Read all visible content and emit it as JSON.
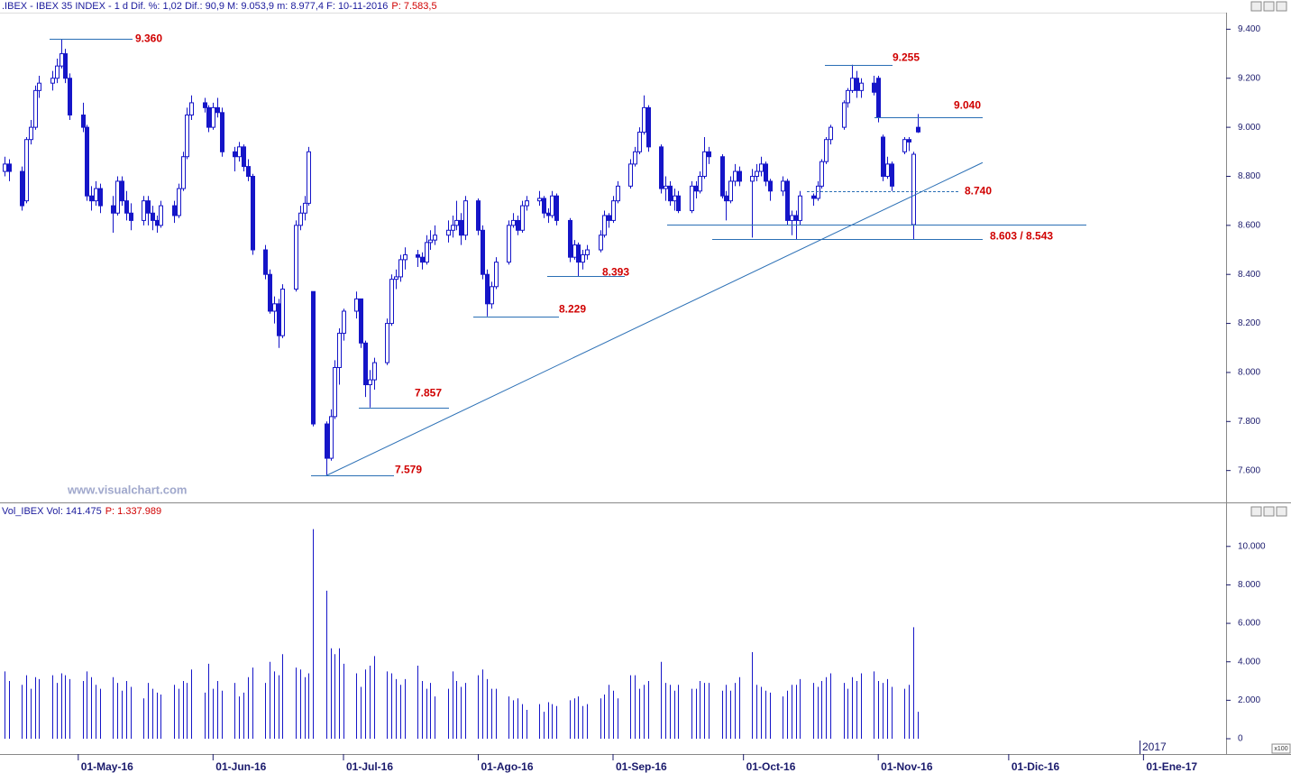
{
  "chart_data": {
    "type": "candlestick",
    "title": ".IBEX - IBEX 35 INDEX - 1 d Dif. %: 1,02 Dif.: 90,9 M: 9.053,9 m: 8.977,4 F: 10-11-2016",
    "subtitle": "P: 7.583,5",
    "watermark": "www.visualchart.com",
    "volume_title": "Vol_IBEX Vol: 141.475",
    "volume_subtitle": "P: 1.337.989",
    "year_label": "2017",
    "unit_label": "x100",
    "color": "#1515c8",
    "x": [
      "2016-04-14",
      "2016-04-15",
      "2016-04-18",
      "2016-04-19",
      "2016-04-20",
      "2016-04-21",
      "2016-04-22",
      "2016-04-25",
      "2016-04-26",
      "2016-04-27",
      "2016-04-28",
      "2016-04-29",
      "2016-05-02",
      "2016-05-03",
      "2016-05-04",
      "2016-05-05",
      "2016-05-06",
      "2016-05-09",
      "2016-05-10",
      "2016-05-11",
      "2016-05-12",
      "2016-05-13",
      "2016-05-16",
      "2016-05-17",
      "2016-05-18",
      "2016-05-19",
      "2016-05-20",
      "2016-05-23",
      "2016-05-24",
      "2016-05-25",
      "2016-05-26",
      "2016-05-27",
      "2016-05-30",
      "2016-05-31",
      "2016-06-01",
      "2016-06-02",
      "2016-06-03",
      "2016-06-06",
      "2016-06-07",
      "2016-06-08",
      "2016-06-09",
      "2016-06-10",
      "2016-06-13",
      "2016-06-14",
      "2016-06-15",
      "2016-06-16",
      "2016-06-17",
      "2016-06-20",
      "2016-06-21",
      "2016-06-22",
      "2016-06-23",
      "2016-06-24",
      "2016-06-27",
      "2016-06-28",
      "2016-06-29",
      "2016-06-30",
      "2016-07-01",
      "2016-07-04",
      "2016-07-05",
      "2016-07-06",
      "2016-07-07",
      "2016-07-08",
      "2016-07-11",
      "2016-07-12",
      "2016-07-13",
      "2016-07-14",
      "2016-07-15",
      "2016-07-18",
      "2016-07-19",
      "2016-07-20",
      "2016-07-21",
      "2016-07-22",
      "2016-07-25",
      "2016-07-26",
      "2016-07-27",
      "2016-07-28",
      "2016-07-29",
      "2016-08-01",
      "2016-08-02",
      "2016-08-03",
      "2016-08-04",
      "2016-08-05",
      "2016-08-08",
      "2016-08-09",
      "2016-08-10",
      "2016-08-11",
      "2016-08-12",
      "2016-08-15",
      "2016-08-16",
      "2016-08-17",
      "2016-08-18",
      "2016-08-19",
      "2016-08-22",
      "2016-08-23",
      "2016-08-24",
      "2016-08-25",
      "2016-08-26",
      "2016-08-29",
      "2016-08-30",
      "2016-08-31",
      "2016-09-01",
      "2016-09-02",
      "2016-09-05",
      "2016-09-06",
      "2016-09-07",
      "2016-09-08",
      "2016-09-09",
      "2016-09-12",
      "2016-09-13",
      "2016-09-14",
      "2016-09-15",
      "2016-09-16",
      "2016-09-19",
      "2016-09-20",
      "2016-09-21",
      "2016-09-22",
      "2016-09-23",
      "2016-09-26",
      "2016-09-27",
      "2016-09-28",
      "2016-09-29",
      "2016-09-30",
      "2016-10-03",
      "2016-10-04",
      "2016-10-05",
      "2016-10-06",
      "2016-10-07",
      "2016-10-10",
      "2016-10-11",
      "2016-10-12",
      "2016-10-13",
      "2016-10-14",
      "2016-10-17",
      "2016-10-18",
      "2016-10-19",
      "2016-10-20",
      "2016-10-21",
      "2016-10-24",
      "2016-10-25",
      "2016-10-26",
      "2016-10-27",
      "2016-10-28",
      "2016-10-31",
      "2016-11-01",
      "2016-11-02",
      "2016-11-03",
      "2016-11-04",
      "2016-11-07",
      "2016-11-08",
      "2016-11-09",
      "2016-11-10"
    ],
    "open": [
      8820,
      8850,
      8820,
      8700,
      8950,
      9000,
      9150,
      9180,
      9200,
      9250,
      9300,
      9200,
      9050,
      9000,
      8720,
      8700,
      8750,
      8680,
      8650,
      8780,
      8700,
      8650,
      8620,
      8700,
      8650,
      8620,
      8600,
      8680,
      8640,
      8750,
      8880,
      9050,
      9100,
      9080,
      9000,
      9080,
      9060,
      8900,
      8880,
      8920,
      8840,
      8800,
      8500,
      8400,
      8250,
      8280,
      8150,
      8340,
      8600,
      8650,
      8690,
      8330,
      7790,
      7650,
      7820,
      8020,
      8160,
      8250,
      8300,
      8120,
      7950,
      7970,
      8040,
      8200,
      8380,
      8390,
      8460,
      8480,
      8470,
      8450,
      8530,
      8540,
      8560,
      8580,
      8600,
      8620,
      8560,
      8700,
      8580,
      8400,
      8280,
      8350,
      8450,
      8600,
      8620,
      8580,
      8680,
      8700,
      8710,
      8650,
      8640,
      8720,
      8620,
      8470,
      8520,
      8450,
      8480,
      8500,
      8560,
      8640,
      8620,
      8700,
      8760,
      8850,
      8900,
      8980,
      9080,
      8920,
      8750,
      8760,
      8700,
      8720,
      8660,
      8760,
      8740,
      8800,
      8900,
      8880,
      8720,
      8700,
      8780,
      8820,
      8780,
      8800,
      8820,
      8850,
      8780,
      8740,
      8780,
      8620,
      8640,
      8620,
      8720,
      8710,
      8760,
      8860,
      8950,
      9000,
      9100,
      9150,
      9200,
      9150,
      9180,
      9200,
      8960,
      8800,
      8850,
      8900,
      8950,
      8603,
      9000
    ],
    "high": [
      8880,
      8870,
      8840,
      8960,
      9030,
      9170,
      9210,
      9230,
      9280,
      9360,
      9320,
      9220,
      9100,
      9010,
      8760,
      8780,
      8770,
      8720,
      8800,
      8800,
      8740,
      8690,
      8720,
      8720,
      8680,
      8640,
      8700,
      8700,
      8770,
      8900,
      9080,
      9130,
      9120,
      9090,
      9100,
      9120,
      9080,
      8920,
      8940,
      8930,
      8870,
      8810,
      8520,
      8420,
      8310,
      8300,
      8360,
      8620,
      8680,
      8720,
      8920,
      8330,
      7800,
      7850,
      8050,
      8180,
      8260,
      8330,
      8300,
      8130,
      8010,
      8060,
      8220,
      8400,
      8420,
      8480,
      8510,
      8500,
      8490,
      8560,
      8580,
      8600,
      8620,
      8640,
      8700,
      8650,
      8720,
      8710,
      8600,
      8420,
      8370,
      8470,
      8620,
      8650,
      8640,
      8700,
      8720,
      8740,
      8720,
      8670,
      8740,
      8730,
      8630,
      8540,
      8530,
      8500,
      8520,
      8580,
      8660,
      8650,
      8720,
      8780,
      8870,
      8920,
      9000,
      9130,
      9090,
      8930,
      8800,
      8780,
      8750,
      8740,
      8780,
      8780,
      8820,
      8960,
      8920,
      8890,
      8740,
      8800,
      8850,
      8840,
      8830,
      8850,
      8880,
      8860,
      8790,
      8800,
      8790,
      8660,
      8660,
      8740,
      8730,
      8780,
      8870,
      8960,
      9010,
      9110,
      9160,
      9255,
      9230,
      9200,
      9210,
      9210,
      8970,
      8880,
      8860,
      8960,
      8960,
      8900,
      9054
    ],
    "low": [
      8800,
      8780,
      8660,
      8690,
      8930,
      8990,
      9120,
      9150,
      9180,
      9240,
      9180,
      9030,
      8980,
      8700,
      8660,
      8680,
      8650,
      8570,
      8640,
      8680,
      8620,
      8580,
      8600,
      8600,
      8580,
      8570,
      8590,
      8610,
      8630,
      8740,
      8870,
      9030,
      9060,
      8980,
      8990,
      9040,
      8880,
      8820,
      8860,
      8820,
      8780,
      8480,
      8380,
      8240,
      8200,
      8100,
      8140,
      8330,
      8580,
      8620,
      8680,
      7780,
      7579,
      7640,
      7810,
      7950,
      8130,
      8220,
      8100,
      7900,
      7857,
      7930,
      8030,
      8190,
      8340,
      8370,
      8420,
      8430,
      8420,
      8440,
      8500,
      8520,
      8530,
      8550,
      8580,
      8520,
      8540,
      8560,
      8380,
      8229,
      8260,
      8340,
      8440,
      8590,
      8560,
      8570,
      8660,
      8680,
      8630,
      8610,
      8630,
      8600,
      8450,
      8460,
      8393,
      8420,
      8460,
      8490,
      8550,
      8590,
      8610,
      8690,
      8750,
      8840,
      8890,
      8970,
      8900,
      8730,
      8700,
      8680,
      8660,
      8650,
      8650,
      8710,
      8730,
      8790,
      8850,
      8710,
      8620,
      8690,
      8760,
      8760,
      8550,
      8780,
      8800,
      8760,
      8700,
      8720,
      8600,
      8560,
      8543,
      8600,
      8680,
      8700,
      8750,
      8850,
      8930,
      8990,
      9080,
      9140,
      9120,
      9120,
      9130,
      9020,
      8780,
      8790,
      8740,
      8890,
      8903,
      8543,
      8977
    ],
    "close": [
      8850,
      8820,
      8680,
      8950,
      9000,
      9150,
      9180,
      9200,
      9250,
      9300,
      9200,
      9050,
      9000,
      8720,
      8700,
      8750,
      8680,
      8650,
      8780,
      8700,
      8650,
      8620,
      8700,
      8650,
      8620,
      8600,
      8680,
      8640,
      8750,
      8880,
      9050,
      9100,
      9080,
      9000,
      9080,
      9060,
      8900,
      8880,
      8920,
      8840,
      8800,
      8500,
      8400,
      8250,
      8280,
      8150,
      8340,
      8600,
      8650,
      8690,
      8900,
      7790,
      7650,
      7820,
      8020,
      8160,
      8250,
      8300,
      8120,
      7950,
      7970,
      8040,
      8200,
      8380,
      8390,
      8460,
      8480,
      8470,
      8450,
      8530,
      8540,
      8560,
      8580,
      8600,
      8620,
      8560,
      8700,
      8580,
      8400,
      8280,
      8350,
      8450,
      8600,
      8620,
      8580,
      8680,
      8700,
      8710,
      8650,
      8640,
      8720,
      8620,
      8470,
      8520,
      8450,
      8480,
      8500,
      8560,
      8640,
      8620,
      8700,
      8760,
      8850,
      8900,
      8980,
      9080,
      8920,
      8750,
      8760,
      8700,
      8720,
      8660,
      8760,
      8740,
      8800,
      8900,
      8880,
      8720,
      8700,
      8780,
      8820,
      8780,
      8800,
      8820,
      8850,
      8780,
      8740,
      8780,
      8620,
      8640,
      8620,
      8720,
      8710,
      8760,
      8860,
      8950,
      9000,
      9100,
      9150,
      9200,
      9150,
      9180,
      9143,
      9040,
      8800,
      8850,
      8760,
      8950,
      8940,
      8890,
      8981
    ],
    "volume": [
      3500,
      3000,
      2800,
      3300,
      2600,
      3200,
      3100,
      3300,
      2900,
      3400,
      3300,
      3100,
      3000,
      3500,
      3200,
      2800,
      2600,
      3200,
      2900,
      2500,
      3000,
      2700,
      2100,
      2900,
      2600,
      2400,
      2300,
      2800,
      2600,
      3000,
      2900,
      3600,
      2400,
      3900,
      2600,
      3000,
      2500,
      2900,
      2200,
      2400,
      3200,
      3700,
      2900,
      4000,
      3500,
      3300,
      4400,
      3700,
      3600,
      3200,
      3400,
      10900,
      7700,
      4700,
      4400,
      4700,
      3900,
      3400,
      2700,
      3600,
      3800,
      4300,
      3500,
      3400,
      3100,
      2800,
      3100,
      3800,
      3000,
      2600,
      2900,
      2200,
      2600,
      3500,
      3000,
      2700,
      2900,
      3300,
      3600,
      3100,
      2600,
      2600,
      2200,
      2000,
      2100,
      1800,
      1500,
      1800,
      1400,
      1900,
      1800,
      1700,
      2000,
      2100,
      2200,
      1700,
      1800,
      2100,
      2300,
      2800,
      2500,
      2100,
      3300,
      3300,
      2600,
      2800,
      3000,
      4000,
      2900,
      2800,
      2500,
      2800,
      2600,
      2600,
      3000,
      2900,
      2900,
      2500,
      2800,
      2500,
      2900,
      3200,
      4500,
      2800,
      2700,
      2500,
      2400,
      2200,
      2500,
      2800,
      2800,
      3100,
      2900,
      2700,
      3000,
      3200,
      3400,
      2900,
      2600,
      3200,
      3000,
      3400,
      3500,
      3000,
      2900,
      3100,
      2700,
      2600,
      2800,
      5800,
      1400
    ],
    "xlim": [
      "2016-04-13",
      "2017-01-20"
    ],
    "xticks": [
      {
        "value": "2016-05-01",
        "label": "01-May-16"
      },
      {
        "value": "2016-06-01",
        "label": "01-Jun-16"
      },
      {
        "value": "2016-07-01",
        "label": "01-Jul-16"
      },
      {
        "value": "2016-08-01",
        "label": "01-Ago-16"
      },
      {
        "value": "2016-09-01",
        "label": "01-Sep-16"
      },
      {
        "value": "2016-10-01",
        "label": "01-Oct-16"
      },
      {
        "value": "2016-11-01",
        "label": "01-Nov-16"
      },
      {
        "value": "2016-12-01",
        "label": "01-Dic-16"
      },
      {
        "value": "2017-01-01",
        "label": "01-Ene-17"
      }
    ],
    "ylim": [
      7470,
      9475
    ],
    "yticks": [
      {
        "value": 7600,
        "label": "7.600"
      },
      {
        "value": 7800,
        "label": "7.800"
      },
      {
        "value": 8000,
        "label": "8.000"
      },
      {
        "value": 8200,
        "label": "8.200"
      },
      {
        "value": 8400,
        "label": "8.400"
      },
      {
        "value": 8600,
        "label": "8.600"
      },
      {
        "value": 8800,
        "label": "8.800"
      },
      {
        "value": 9000,
        "label": "9.000"
      },
      {
        "value": 9200,
        "label": "9.200"
      },
      {
        "value": 9400,
        "label": "9.400"
      }
    ],
    "volume_ylim": [
      -750,
      11350
    ],
    "volume_yticks": [
      0,
      {
        "value": 2000,
        "label": "2.000"
      },
      {
        "value": 4000,
        "label": "4.000"
      },
      {
        "value": 6000,
        "label": "6.000"
      },
      {
        "value": 8000,
        "label": "8.000"
      },
      {
        "value": 10000,
        "label": "10.000"
      }
    ],
    "levels": [
      {
        "value": 9360,
        "label": "9.360"
      },
      {
        "value": 9255,
        "label": "9.255"
      },
      {
        "value": 9040,
        "label": "9.040"
      },
      {
        "value": 8740,
        "label": "8.740"
      },
      {
        "value": 8393,
        "label": "8.393"
      },
      {
        "value": 8229,
        "label": "8.229"
      },
      {
        "value": 7857,
        "label": "7.857"
      },
      {
        "value": 7579,
        "label": "7.579"
      }
    ],
    "double_level": {
      "values": [
        8603,
        8543
      ],
      "label": "8.603 / 8.543"
    },
    "trendline": {
      "x": [
        "2016-06-27",
        "2016-11-25"
      ],
      "values": [
        7579,
        8856
      ]
    }
  }
}
